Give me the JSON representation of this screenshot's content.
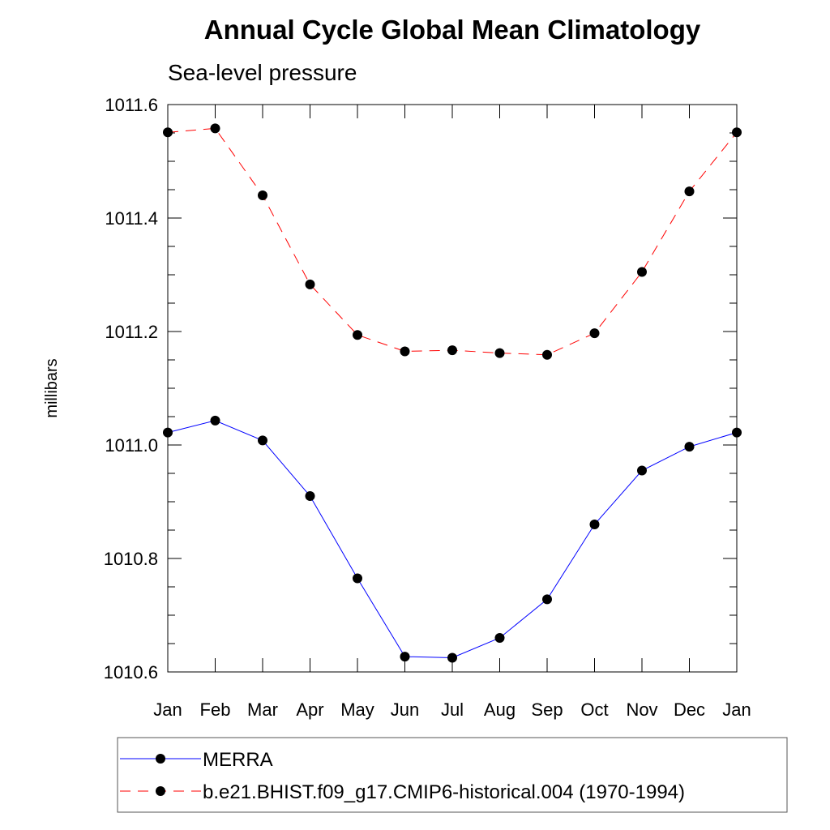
{
  "chart_data": {
    "type": "line",
    "title": "Annual Cycle Global Mean Climatology",
    "subtitle": "Sea-level pressure",
    "xlabel": "",
    "ylabel": "millibars",
    "categories": [
      "Jan",
      "Feb",
      "Mar",
      "Apr",
      "May",
      "Jun",
      "Jul",
      "Aug",
      "Sep",
      "Oct",
      "Nov",
      "Dec",
      "Jan"
    ],
    "ylim": [
      1010.6,
      1011.6
    ],
    "yticks": [
      "1010.6",
      "1010.8",
      "1011.0",
      "1011.2",
      "1011.4",
      "1011.6"
    ],
    "grid": false,
    "legend_position": "bottom",
    "series": [
      {
        "name": "MERRA",
        "color": "#0000ff",
        "line_style": "solid",
        "marker": "filled-circle",
        "values": [
          1011.022,
          1011.043,
          1011.008,
          1010.91,
          1010.765,
          1010.627,
          1010.625,
          1010.66,
          1010.728,
          1010.86,
          1010.955,
          1010.997,
          1011.022
        ]
      },
      {
        "name": "b.e21.BHIST.f09_g17.CMIP6-historical.004 (1970-1994)",
        "color": "#ff0000",
        "line_style": "dashed",
        "marker": "filled-circle",
        "values": [
          1011.551,
          1011.558,
          1011.44,
          1011.283,
          1011.194,
          1011.165,
          1011.167,
          1011.162,
          1011.159,
          1011.197,
          1011.305,
          1011.447,
          1011.551
        ]
      }
    ]
  }
}
